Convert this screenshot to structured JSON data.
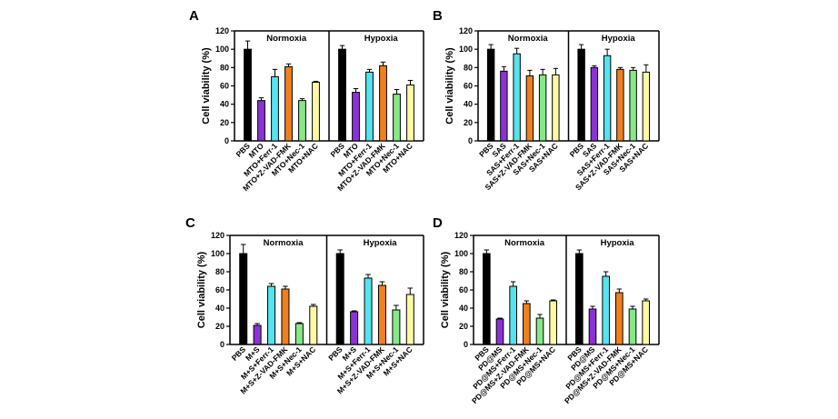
{
  "chart_data": [
    {
      "panel": "A",
      "type": "bar",
      "ylabel": "Cell viability (%)",
      "ylim": [
        0,
        120
      ],
      "yticks": [
        0,
        20,
        40,
        60,
        80,
        100,
        120
      ],
      "groups": [
        {
          "name": "Normoxia",
          "categories": [
            "PBS",
            "MTO",
            "MTO+Ferr-1",
            "MTO+Z-VAD-FMK",
            "MTO+Nec-1",
            "MTO+NAC"
          ],
          "values": [
            100,
            44,
            70,
            81,
            44,
            64
          ],
          "errors": [
            9,
            3,
            8,
            3,
            2,
            1
          ]
        },
        {
          "name": "Hypoxia",
          "categories": [
            "PBS",
            "MTO",
            "MTO+Ferr-1",
            "MTO+Z-VAD-FMK",
            "MTO+Nec-1",
            "MTO+NAC"
          ],
          "values": [
            100,
            53,
            75,
            82,
            51,
            61
          ],
          "errors": [
            4,
            4,
            3,
            4,
            5,
            5
          ]
        }
      ]
    },
    {
      "panel": "B",
      "type": "bar",
      "ylabel": "Cell viability (%)",
      "ylim": [
        0,
        120
      ],
      "yticks": [
        0,
        20,
        40,
        60,
        80,
        100,
        120
      ],
      "groups": [
        {
          "name": "Normoxia",
          "categories": [
            "PBS",
            "SAS",
            "SAS+Ferr-1",
            "SAS+Z-VAD-FMK",
            "SAS+Nec-1",
            "SAS+NAC"
          ],
          "values": [
            100,
            76,
            95,
            71,
            72,
            72
          ],
          "errors": [
            5,
            5,
            6,
            6,
            6,
            7
          ]
        },
        {
          "name": "Hypoxia",
          "categories": [
            "PBS",
            "SAS",
            "SAS+Ferr-1",
            "SAS+Z-VAD-FMK",
            "SAS+Nec-1",
            "SAS+NAC"
          ],
          "values": [
            100,
            80,
            93,
            78,
            77,
            75
          ],
          "errors": [
            5,
            2,
            7,
            2,
            3,
            8
          ]
        }
      ]
    },
    {
      "panel": "C",
      "type": "bar",
      "ylabel": "Cell viability (%)",
      "ylim": [
        0,
        120
      ],
      "yticks": [
        0,
        20,
        40,
        60,
        80,
        100,
        120
      ],
      "groups": [
        {
          "name": "Normoxia",
          "categories": [
            "PBS",
            "M+S",
            "M+S+Ferr-1",
            "M+S+Z-VAD-FMK",
            "M+S+Nec-1",
            "M+S+NAC"
          ],
          "values": [
            100,
            21,
            64,
            61,
            23,
            42
          ],
          "errors": [
            10,
            2,
            3,
            3,
            1,
            2
          ]
        },
        {
          "name": "Hypoxia",
          "categories": [
            "PBS",
            "M+S",
            "M+S+Ferr-1",
            "M+S+Z-VAD-FMK",
            "M+S+Nec-1",
            "M+S+NAC"
          ],
          "values": [
            100,
            36,
            73,
            65,
            38,
            55
          ],
          "errors": [
            4,
            1,
            4,
            4,
            5,
            7
          ]
        }
      ]
    },
    {
      "panel": "D",
      "type": "bar",
      "ylabel": "Cell viability (%)",
      "ylim": [
        0,
        120
      ],
      "yticks": [
        0,
        20,
        40,
        60,
        80,
        100,
        120
      ],
      "groups": [
        {
          "name": "Normoxia",
          "categories": [
            "PBS",
            "PD@MS",
            "PD@MS+Ferr-1",
            "PD@MS+Z-VAD-FMK",
            "PD@MS+Nec-1",
            "PD@MS+NAC"
          ],
          "values": [
            100,
            28,
            64,
            45,
            29,
            48
          ],
          "errors": [
            4,
            1,
            5,
            3,
            4,
            1
          ]
        },
        {
          "name": "Hypoxia",
          "categories": [
            "PBS",
            "PD@MS",
            "PD@MS+Ferr-1",
            "PD@MS+Z-VAD-FMK",
            "PD@MS+Nec-1",
            "PD@MS+NAC"
          ],
          "values": [
            100,
            39,
            75,
            57,
            39,
            48
          ],
          "errors": [
            4,
            3,
            5,
            4,
            3,
            2
          ]
        }
      ]
    }
  ],
  "bar_colors": [
    "#000000",
    "#8b32d6",
    "#55e3f0",
    "#f07f1e",
    "#86e886",
    "#fdf8a4"
  ]
}
